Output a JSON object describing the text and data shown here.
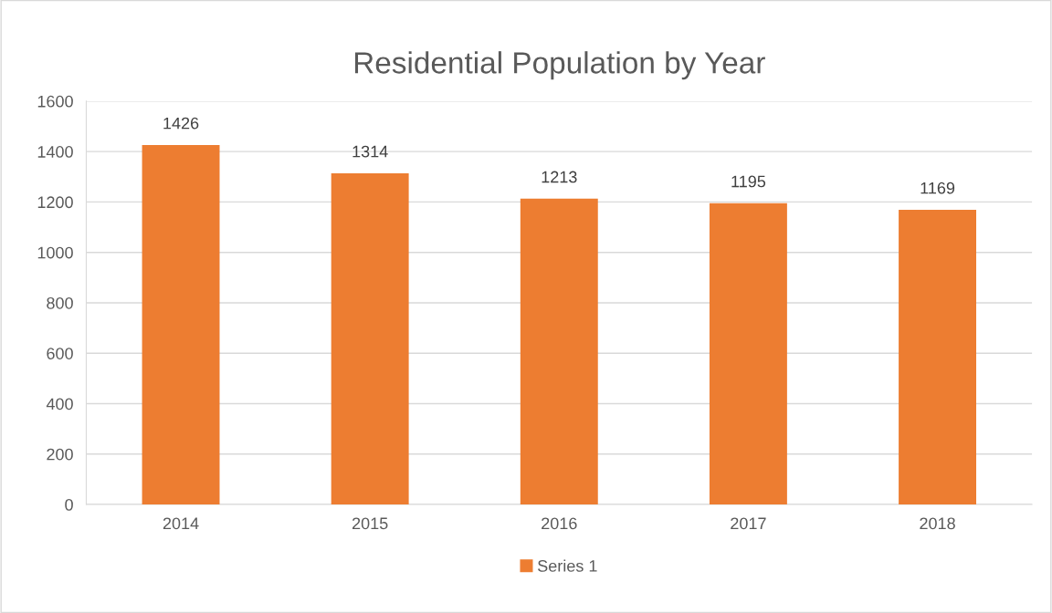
{
  "chart_data": {
    "type": "bar",
    "title": "Residential Population by Year",
    "categories": [
      "2014",
      "2015",
      "2016",
      "2017",
      "2018"
    ],
    "series": [
      {
        "name": "Series 1",
        "color": "#ed7d31",
        "values": [
          1426,
          1314,
          1213,
          1195,
          1169
        ]
      }
    ],
    "ylim": [
      0,
      1600
    ],
    "yticks": [
      0,
      200,
      400,
      600,
      800,
      1000,
      1200,
      1400,
      1600
    ],
    "grid": "y",
    "legend": "bottom",
    "data_labels": true
  }
}
